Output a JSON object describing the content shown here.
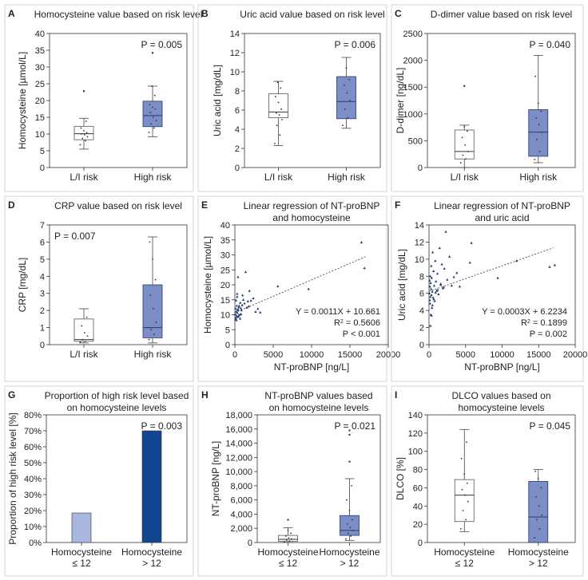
{
  "colors": {
    "fill": "#7b8fc6",
    "dark": "#2a3a6a",
    "light_bar": "#a9b6dd",
    "dark_bar": "#12458f",
    "grid": "#cccccc",
    "panel_border": "#d4d4d4"
  },
  "chart_data": [
    {
      "id": "A",
      "type": "box",
      "title": [
        "Homocysteine value based on risk level"
      ],
      "ylabel": "Homocysteine [µmol/L]",
      "ylim": [
        0,
        40
      ],
      "yticks": [
        0,
        5,
        10,
        15,
        20,
        25,
        30,
        35,
        40
      ],
      "categories": [
        [
          "L/I risk"
        ],
        [
          "High risk"
        ]
      ],
      "p_label": "P = 0.005",
      "p_pos": "right",
      "boxes": [
        {
          "q1": 8.3,
          "median": 10.1,
          "q3": 12.3,
          "min": 5.5,
          "max": 14.7,
          "outliers": [
            22.8
          ],
          "filled": false,
          "points": [
            6.8,
            8,
            8.7,
            9.2,
            9.8,
            10,
            10.4,
            11,
            11.8,
            13.8
          ]
        },
        {
          "q1": 12.2,
          "median": 15.5,
          "q3": 19.8,
          "min": 9.2,
          "max": 24.3,
          "outliers": [
            34.2
          ],
          "filled": true,
          "points": [
            10.5,
            11.8,
            13,
            14,
            15,
            16.4,
            17.5,
            18,
            18.8,
            21.5,
            24.3
          ]
        }
      ]
    },
    {
      "id": "B",
      "type": "box",
      "title": [
        "Uric acid value based on risk level"
      ],
      "ylabel": "Uric acid [mg/dL]",
      "ylim": [
        0,
        14
      ],
      "yticks": [
        0,
        2,
        4,
        6,
        8,
        10,
        12,
        14
      ],
      "categories": [
        [
          "L/I risk"
        ],
        [
          "High risk"
        ]
      ],
      "p_label": "P = 0.006",
      "p_pos": "right",
      "boxes": [
        {
          "q1": 5.2,
          "median": 5.8,
          "q3": 7.7,
          "min": 2.3,
          "max": 9.0,
          "outliers": [],
          "filled": false,
          "points": [
            2.5,
            3.4,
            4.4,
            5,
            5.5,
            5.7,
            6.1,
            6.8,
            7.4,
            8.3,
            8.9
          ]
        },
        {
          "q1": 5.1,
          "median": 6.9,
          "q3": 9.5,
          "min": 4.1,
          "max": 11.5,
          "outliers": [],
          "filled": true,
          "points": [
            4.4,
            5.2,
            6.1,
            7,
            7.8,
            8.6,
            9.2,
            10.4
          ]
        }
      ]
    },
    {
      "id": "C",
      "type": "box",
      "title": [
        "D-dimer value based on risk level"
      ],
      "ylabel": "D-dimer [ng/dL]",
      "ylim": [
        0,
        2500
      ],
      "yticks": [
        0,
        500,
        1000,
        1500,
        2000,
        2500
      ],
      "categories": [
        [
          "L/I risk"
        ],
        [
          "High risk"
        ]
      ],
      "p_label": "P = 0.040",
      "p_pos": "right",
      "boxes": [
        {
          "q1": 160,
          "median": 300,
          "q3": 700,
          "min": 0,
          "max": 790,
          "outliers": [
            1520
          ],
          "filled": false,
          "points": [
            90,
            160,
            230,
            300,
            420,
            560,
            680,
            760
          ]
        },
        {
          "q1": 210,
          "median": 660,
          "q3": 1080,
          "min": 90,
          "max": 2090,
          "outliers": [],
          "filled": true,
          "points": [
            150,
            300,
            520,
            660,
            800,
            920,
            1050,
            1200,
            1700
          ]
        }
      ]
    },
    {
      "id": "D",
      "type": "box",
      "title": [
        "CRP value based on risk level"
      ],
      "ylabel": "CRP [mg/dL]",
      "ylim": [
        0,
        7
      ],
      "yticks": [
        0,
        1,
        2,
        3,
        4,
        5,
        6,
        7
      ],
      "categories": [
        [
          "L/I risk"
        ],
        [
          "High risk"
        ]
      ],
      "p_label": "P = 0.007",
      "p_pos": "left",
      "boxes": [
        {
          "q1": 0.2,
          "median": 0.3,
          "q3": 1.5,
          "min": 0.1,
          "max": 2.1,
          "outliers": [],
          "filled": false,
          "points": [
            0.15,
            0.2,
            0.3,
            0.5,
            0.7,
            1.1,
            1.6
          ]
        },
        {
          "q1": 0.4,
          "median": 1.0,
          "q3": 3.5,
          "min": 0.1,
          "max": 6.3,
          "outliers": [],
          "filled": true,
          "points": [
            0.3,
            0.6,
            0.9,
            1.3,
            2.1,
            2.9,
            3.8,
            5.0,
            6.0
          ]
        }
      ]
    },
    {
      "id": "E",
      "type": "scatter",
      "title": [
        "Linear regression of NT-proBNP",
        "and homocysteine"
      ],
      "xlabel": "NT-proBNP [ng/L]",
      "ylabel": "Homocysteine [µmol/L]",
      "xlim": [
        0,
        20000
      ],
      "ylim": [
        0,
        40
      ],
      "xticks": [
        0,
        5000,
        10000,
        15000,
        20000
      ],
      "yticks": [
        0,
        5,
        10,
        15,
        20,
        25,
        30,
        35,
        40
      ],
      "fit": {
        "slope": 0.0011,
        "intercept": 10.661
      },
      "stats": [
        {
          "main": "Y = 0.0011X + 10.661"
        },
        {
          "main": "R",
          "sup": "2",
          "rest": " = 0.5606"
        },
        {
          "main": "P < 0.001"
        }
      ],
      "x": [
        60,
        90,
        120,
        150,
        180,
        210,
        240,
        260,
        290,
        320,
        360,
        400,
        450,
        500,
        560,
        620,
        700,
        780,
        860,
        950,
        1100,
        1250,
        1400,
        1550,
        1700,
        1900,
        2100,
        2400,
        2700,
        3000,
        3300,
        5600,
        9600,
        16500,
        16900,
        150,
        300,
        420,
        520,
        680,
        800,
        1000,
        1800
      ],
      "y": [
        8.5,
        10,
        12,
        9,
        11,
        8.2,
        13,
        9.5,
        16,
        10.6,
        11.5,
        22.6,
        9.3,
        12.5,
        13,
        10,
        14,
        12.2,
        11.5,
        13.2,
        15,
        13.8,
        24.3,
        12.4,
        14.5,
        18,
        14.7,
        15.5,
        11,
        12,
        10.8,
        19.5,
        18.6,
        34.2,
        25.6,
        14.8,
        17,
        11.8,
        9.8,
        8.7,
        10.2,
        16.5,
        12.8
      ]
    },
    {
      "id": "F",
      "type": "scatter",
      "title": [
        "Linear regression of NT-proBNP",
        "and uric acid"
      ],
      "xlabel": "NT-proBNP [ng/L]",
      "ylabel": "Uric acid [mg/dL]",
      "xlim": [
        0,
        20000
      ],
      "ylim": [
        0,
        14
      ],
      "xticks": [
        0,
        5000,
        10000,
        15000,
        20000
      ],
      "yticks": [
        0,
        2,
        4,
        6,
        8,
        10,
        12,
        14
      ],
      "fit": {
        "slope": 0.0003,
        "intercept": 6.2234
      },
      "stats": [
        {
          "main": "Y = 0.0003X + 6.2234"
        },
        {
          "main": "R",
          "sup": "2",
          "rest": " = 0.1899"
        },
        {
          "main": "P = 0.002"
        }
      ],
      "x": [
        50,
        80,
        100,
        120,
        150,
        170,
        200,
        220,
        250,
        280,
        300,
        330,
        360,
        400,
        450,
        500,
        560,
        620,
        700,
        780,
        860,
        950,
        1050,
        1150,
        1300,
        1450,
        1600,
        1750,
        1900,
        2100,
        2300,
        2500,
        2800,
        3100,
        3400,
        3800,
        4200,
        5600,
        5800,
        9400,
        12000,
        16500,
        17200,
        200,
        350,
        480,
        650,
        900,
        1200,
        1600,
        2000
      ],
      "y": [
        6,
        7.5,
        5.2,
        6.8,
        4.8,
        8,
        5.6,
        7.2,
        3.5,
        6.5,
        9.2,
        5.8,
        7.8,
        4.3,
        6.2,
        10.8,
        5.5,
        8.6,
        6.9,
        5.1,
        9.8,
        7.4,
        6.3,
        8.3,
        5.9,
        11.3,
        7.1,
        9.4,
        6.6,
        8.9,
        13.2,
        7.6,
        10.3,
        6.9,
        7.9,
        8.4,
        6.8,
        9.6,
        11.9,
        7.8,
        9.8,
        9.1,
        9.3,
        2.2,
        3.4,
        4.6,
        5.3,
        6.1,
        6.4,
        7,
        6.7
      ]
    },
    {
      "id": "G",
      "type": "bar",
      "title": [
        "Proportion of high risk level based",
        "on homocysteine levels"
      ],
      "ylabel": "Proportion of high risk level [%]",
      "ylim": [
        0,
        80
      ],
      "yticks": [
        0,
        10,
        20,
        30,
        40,
        50,
        60,
        70,
        80
      ],
      "tick_suffix": "%",
      "categories": [
        [
          "Homocysteine",
          "≤ 12"
        ],
        [
          "Homocysteine",
          "> 12"
        ]
      ],
      "values": [
        18.5,
        70
      ],
      "p_label": "P = 0.003",
      "p_pos": "right"
    },
    {
      "id": "H",
      "type": "box",
      "title": [
        "NT-proBNP values based",
        "on homocysteine levels"
      ],
      "ylabel": "NT-proBNP [ng/L]",
      "ylim": [
        0,
        18000
      ],
      "yticks": [
        0,
        2000,
        4000,
        6000,
        8000,
        10000,
        12000,
        14000,
        16000,
        18000
      ],
      "thousands": true,
      "categories": [
        [
          "Homocysteine",
          "≤ 12"
        ],
        [
          "Homocysteine",
          "> 12"
        ]
      ],
      "p_label": "P = 0.021",
      "p_pos": "right",
      "boxes": [
        {
          "q1": 150,
          "median": 450,
          "q3": 1000,
          "min": 0,
          "max": 2100,
          "outliers": [
            3200
          ],
          "filled": false,
          "points": [
            100,
            200,
            350,
            500,
            650,
            900,
            1300,
            1700
          ]
        },
        {
          "q1": 1000,
          "median": 1700,
          "q3": 3800,
          "min": 300,
          "max": 9000,
          "outliers": [
            11400,
            15200,
            15800
          ],
          "filled": true,
          "points": [
            500,
            900,
            1300,
            1700,
            2100,
            2600,
            3200,
            4500,
            6000,
            8000
          ]
        }
      ]
    },
    {
      "id": "I",
      "type": "box",
      "title": [
        "DLCO values based on",
        "homocysteine levels"
      ],
      "ylabel": "DLCO [%]",
      "ylim": [
        0,
        140
      ],
      "yticks": [
        0,
        20,
        40,
        60,
        80,
        100,
        120,
        140
      ],
      "categories": [
        [
          "Homocysteine",
          "≤ 12"
        ],
        [
          "Homocysteine",
          "> 12"
        ]
      ],
      "p_label": "P = 0.045",
      "p_pos": "right",
      "boxes": [
        {
          "q1": 23,
          "median": 52,
          "q3": 69,
          "min": 12,
          "max": 124,
          "outliers": [],
          "filled": false,
          "points": [
            15,
            25,
            35,
            45,
            52,
            58,
            65,
            75,
            92,
            110
          ]
        },
        {
          "q1": 0,
          "median": 28,
          "q3": 67,
          "min": 0,
          "max": 80,
          "outliers": [],
          "filled": true,
          "points": [
            5,
            15,
            25,
            30,
            40,
            50,
            60,
            70,
            78
          ]
        }
      ]
    }
  ]
}
